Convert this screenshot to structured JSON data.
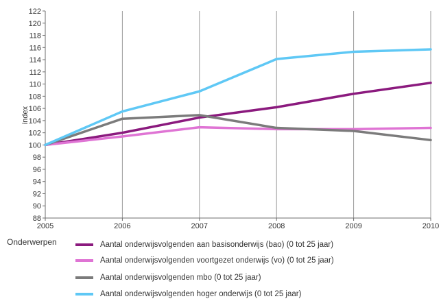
{
  "chart_data": {
    "type": "line",
    "xlabel": "",
    "ylabel": "index",
    "x": [
      2005,
      2006,
      2007,
      2008,
      2009,
      2010
    ],
    "x_tick_labels": [
      "2005",
      "2006",
      "2007",
      "2008",
      "2009",
      "2010"
    ],
    "y_ticks": [
      88,
      90,
      92,
      94,
      96,
      98,
      100,
      102,
      104,
      106,
      108,
      110,
      112,
      114,
      116,
      118,
      120,
      122
    ],
    "ylim": [
      88,
      122
    ],
    "xlim": [
      2005,
      2010
    ],
    "grid": "vertical",
    "legend_title": "Onderwerpen",
    "legend_position": "bottom",
    "series": [
      {
        "name": "Aantal onderwijsvolgenden aan basisonderwijs (bao) (0 tot 25 jaar)",
        "color": "#8b1a7e",
        "values": [
          100,
          102,
          104.5,
          106.2,
          108.4,
          110.2
        ]
      },
      {
        "name": "Aantal onderwijsvolgenden voortgezet onderwijs (vo) (0 tot 25 jaar)",
        "color": "#df74d4",
        "values": [
          100,
          101.4,
          102.9,
          102.6,
          102.6,
          102.8
        ]
      },
      {
        "name": "Aantal onderwijsvolgenden mbo (0 tot 25 jaar)",
        "color": "#7b7b7b",
        "values": [
          100,
          104.3,
          104.9,
          102.8,
          102.3,
          100.8
        ]
      },
      {
        "name": "Aantal onderwijsvolgenden hoger onderwijs (0 tot 25 jaar)",
        "color": "#5fc8f5",
        "values": [
          100,
          105.5,
          108.8,
          114.1,
          115.3,
          115.7
        ]
      }
    ]
  }
}
